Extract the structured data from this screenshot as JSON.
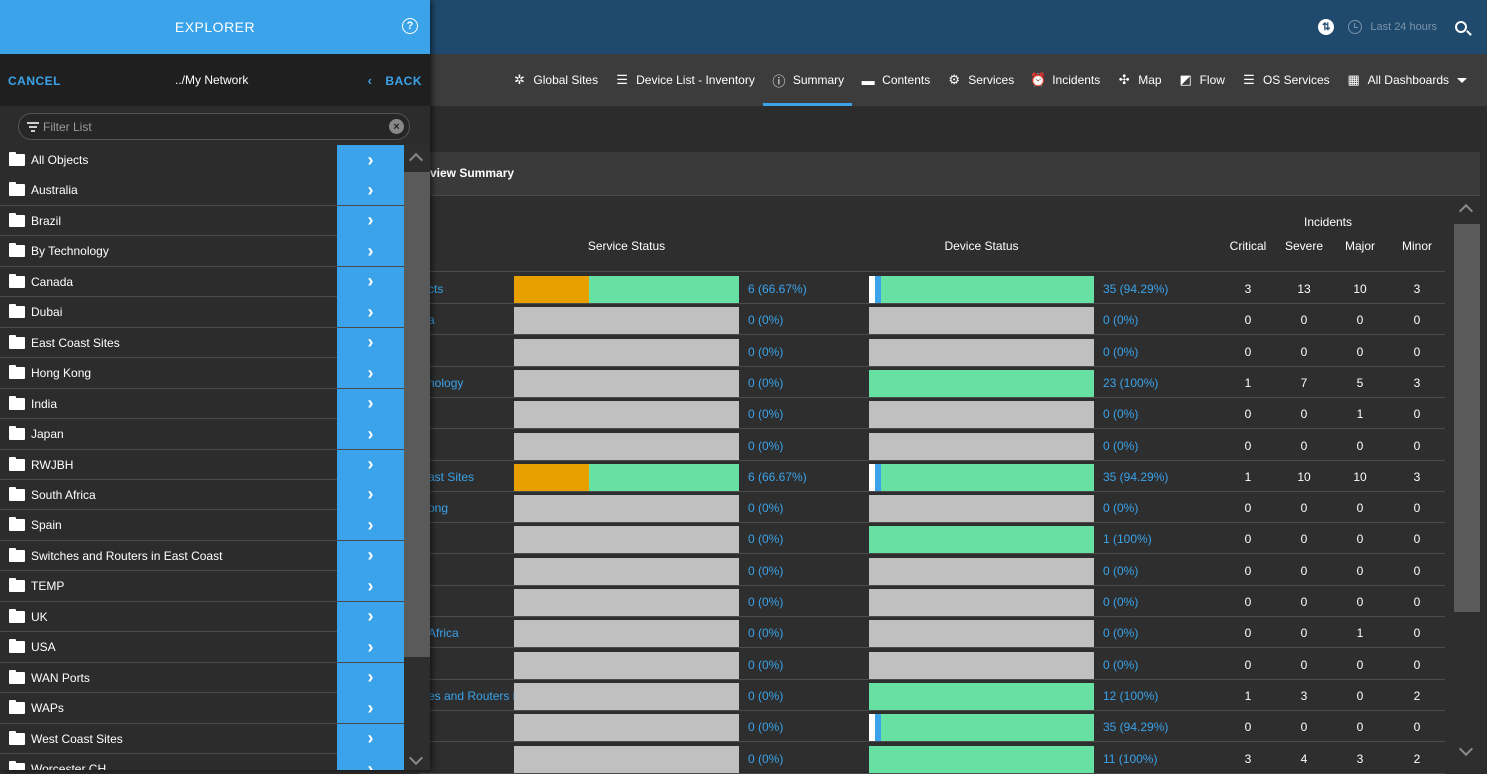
{
  "topbar": {
    "time_range": "Last 24 hours",
    "tz_icon": "timezone-icon"
  },
  "nav": {
    "tabs": [
      {
        "label": "Global Sites",
        "icon": "global-sites-icon",
        "glyph": "✲"
      },
      {
        "label": "Device List - Inventory",
        "icon": "list-icon",
        "glyph": "☰"
      },
      {
        "label": "Summary",
        "icon": "info-icon",
        "glyph": "ⓘ",
        "active": true
      },
      {
        "label": "Contents",
        "icon": "folder-icon",
        "glyph": "▬"
      },
      {
        "label": "Services",
        "icon": "gears-icon",
        "glyph": "⚙"
      },
      {
        "label": "Incidents",
        "icon": "alarm-icon",
        "glyph": "⏰"
      },
      {
        "label": "Map",
        "icon": "network-map-icon",
        "glyph": "✣"
      },
      {
        "label": "Flow",
        "icon": "area-chart-icon",
        "glyph": "◩"
      },
      {
        "label": "OS Services",
        "icon": "list-icon",
        "glyph": "☰"
      },
      {
        "label": "All Dashboards",
        "icon": "dashboard-icon",
        "glyph": "▦"
      }
    ]
  },
  "panel": {
    "title": "view Summary"
  },
  "table": {
    "headers": {
      "service_status": "Service Status",
      "device_status": "Device Status",
      "incidents": "Incidents",
      "critical": "Critical",
      "severe": "Severe",
      "major": "Major",
      "minor": "Minor"
    },
    "colors": {
      "orange": "#e8a000",
      "green": "#66e0a3",
      "blue": "#3aa3ea",
      "gray": "#c0c0c0"
    },
    "rows": [
      {
        "label": "cts",
        "svc": [
          0.333,
          0.667
        ],
        "svc_text": "6 (66.67%)",
        "dev": [
          0.03,
          0.943
        ],
        "dev_text": "35 (94.29%)",
        "inc": [
          "3",
          "13",
          "10",
          "3"
        ]
      },
      {
        "label": "a",
        "svc": [
          0,
          0
        ],
        "svc_text": "0 (0%)",
        "dev": [
          0,
          0
        ],
        "dev_text": "0 (0%)",
        "inc": [
          "0",
          "0",
          "0",
          "0"
        ]
      },
      {
        "label": "",
        "svc": [
          0,
          0
        ],
        "svc_text": "0 (0%)",
        "dev": [
          0,
          0
        ],
        "dev_text": "0 (0%)",
        "inc": [
          "0",
          "0",
          "0",
          "0"
        ]
      },
      {
        "label": "nology",
        "svc": [
          0,
          0
        ],
        "svc_text": "0 (0%)",
        "dev": [
          0,
          1
        ],
        "dev_text": "23 (100%)",
        "inc": [
          "1",
          "7",
          "5",
          "3"
        ]
      },
      {
        "label": "",
        "svc": [
          0,
          0
        ],
        "svc_text": "0 (0%)",
        "dev": [
          0,
          0
        ],
        "dev_text": "0 (0%)",
        "inc": [
          "0",
          "0",
          "1",
          "0"
        ]
      },
      {
        "label": "",
        "svc": [
          0,
          0
        ],
        "svc_text": "0 (0%)",
        "dev": [
          0,
          0
        ],
        "dev_text": "0 (0%)",
        "inc": [
          "0",
          "0",
          "0",
          "0"
        ]
      },
      {
        "label": "ast Sites",
        "svc": [
          0.333,
          0.667
        ],
        "svc_text": "6 (66.67%)",
        "dev": [
          0.03,
          0.943
        ],
        "dev_text": "35 (94.29%)",
        "inc": [
          "1",
          "10",
          "10",
          "3"
        ]
      },
      {
        "label": "ong",
        "svc": [
          0,
          0
        ],
        "svc_text": "0 (0%)",
        "dev": [
          0,
          0
        ],
        "dev_text": "0 (0%)",
        "inc": [
          "0",
          "0",
          "0",
          "0"
        ]
      },
      {
        "label": "",
        "svc": [
          0,
          0
        ],
        "svc_text": "0 (0%)",
        "dev": [
          0,
          1
        ],
        "dev_text": "1 (100%)",
        "inc": [
          "0",
          "0",
          "0",
          "0"
        ]
      },
      {
        "label": "",
        "svc": [
          0,
          0
        ],
        "svc_text": "0 (0%)",
        "dev": [
          0,
          0
        ],
        "dev_text": "0 (0%)",
        "inc": [
          "0",
          "0",
          "0",
          "0"
        ]
      },
      {
        "label": "",
        "svc": [
          0,
          0
        ],
        "svc_text": "0 (0%)",
        "dev": [
          0,
          0
        ],
        "dev_text": "0 (0%)",
        "inc": [
          "0",
          "0",
          "0",
          "0"
        ]
      },
      {
        "label": "Africa",
        "svc": [
          0,
          0
        ],
        "svc_text": "0 (0%)",
        "dev": [
          0,
          0
        ],
        "dev_text": "0 (0%)",
        "inc": [
          "0",
          "0",
          "1",
          "0"
        ]
      },
      {
        "label": "",
        "svc": [
          0,
          0
        ],
        "svc_text": "0 (0%)",
        "dev": [
          0,
          0
        ],
        "dev_text": "0 (0%)",
        "inc": [
          "0",
          "0",
          "0",
          "0"
        ]
      },
      {
        "label": "es and Routers i",
        "svc": [
          0,
          0
        ],
        "svc_text": "0 (0%)",
        "dev": [
          0,
          1
        ],
        "dev_text": "12 (100%)",
        "inc": [
          "1",
          "3",
          "0",
          "2"
        ]
      },
      {
        "label": "",
        "svc": [
          0,
          0
        ],
        "svc_text": "0 (0%)",
        "dev": [
          0.03,
          0.943
        ],
        "dev_text": "35 (94.29%)",
        "inc": [
          "0",
          "0",
          "0",
          "0"
        ]
      },
      {
        "label": "",
        "svc": [
          0,
          0
        ],
        "svc_text": "0 (0%)",
        "dev": [
          0,
          1
        ],
        "dev_text": "11 (100%)",
        "inc": [
          "3",
          "4",
          "3",
          "2"
        ]
      }
    ]
  },
  "explorer": {
    "title": "EXPLORER",
    "cancel": "CANCEL",
    "path": "../My Network",
    "back": "BACK",
    "filter_placeholder": "Filter List",
    "items": [
      "All Objects",
      "Australia",
      "Brazil",
      "By Technology",
      "Canada",
      "Dubai",
      "East Coast Sites",
      "Hong Kong",
      "India",
      "Japan",
      "RWJBH",
      "South Africa",
      "Spain",
      "Switches and Routers in East Coast",
      "TEMP",
      "UK",
      "USA",
      "WAN Ports",
      "WAPs",
      "West Coast Sites",
      "Worcester CH"
    ]
  }
}
